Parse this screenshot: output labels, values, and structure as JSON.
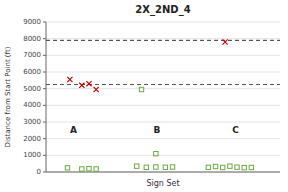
{
  "chart_data": {
    "type": "scatter",
    "title": "2X_2ND_4",
    "xlabel": "Sign Set",
    "ylabel": "Distance from Start Point (ft)",
    "xlim": [
      0,
      9.8
    ],
    "ylim": [
      0,
      9000
    ],
    "yticks": [
      0,
      1000,
      2000,
      3000,
      4000,
      5000,
      6000,
      7000,
      8000,
      9000
    ],
    "grid": true,
    "tick_labels": "y",
    "series": [
      {
        "color": "#6aaa3e",
        "marker": "square",
        "x": [
          0.9,
          1.5,
          1.8,
          2.1,
          3.8,
          4.2,
          4.6,
          5.0,
          5.3,
          4.0,
          6.8,
          7.1,
          7.4,
          7.7,
          8.0,
          8.3,
          8.6
        ],
        "values": [
          250,
          180,
          200,
          180,
          350,
          280,
          300,
          280,
          300,
          4950,
          280,
          330,
          270,
          350,
          290,
          260,
          270
        ]
      },
      {
        "color": "#6aaa3e",
        "marker": "square",
        "x": [
          4.6
        ],
        "values": [
          1100
        ]
      },
      {
        "color": "#cc0000",
        "marker": "x",
        "x": [
          1.0,
          1.5,
          1.8,
          2.1,
          7.5
        ],
        "values": [
          5550,
          5200,
          5300,
          4950,
          7800
        ]
      }
    ],
    "reference_lines": [
      {
        "value": 7900,
        "color": "#333333",
        "line_style": "dashed"
      },
      {
        "value": 5250,
        "color": "#555555",
        "line_style": "dashed"
      }
    ],
    "annotations": [
      {
        "text": "A",
        "x": 1.0,
        "y": 2500
      },
      {
        "text": "B",
        "x": 4.5,
        "y": 2500
      },
      {
        "text": "C",
        "x": 7.8,
        "y": 2500
      }
    ]
  }
}
